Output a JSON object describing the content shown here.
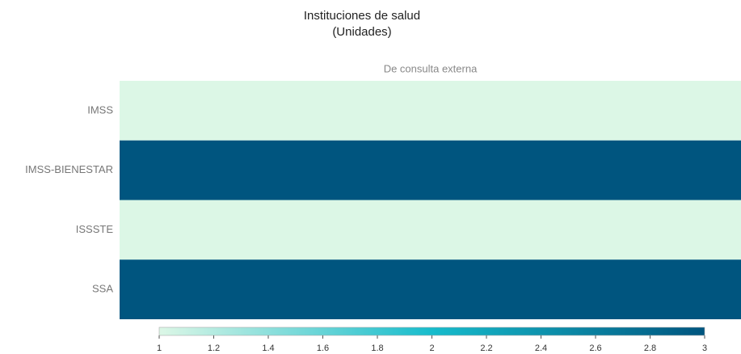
{
  "chart_data": {
    "type": "heatmap",
    "title": "Instituciones de salud",
    "subtitle": "(Unidades)",
    "x": [
      "De consulta externa"
    ],
    "y": [
      "IMSS",
      "IMSS-BIENESTAR",
      "ISSSTE",
      "SSA"
    ],
    "z": [
      [
        1
      ],
      [
        3
      ],
      [
        1
      ],
      [
        3
      ]
    ],
    "colorscale": [
      "#dcf7e6",
      "#17bccc",
      "#00557f"
    ],
    "zlim": [
      1,
      3
    ],
    "zticks": [
      1,
      1.2,
      1.4,
      1.6,
      1.8,
      2,
      2.2,
      2.4,
      2.6,
      2.8,
      3
    ]
  }
}
